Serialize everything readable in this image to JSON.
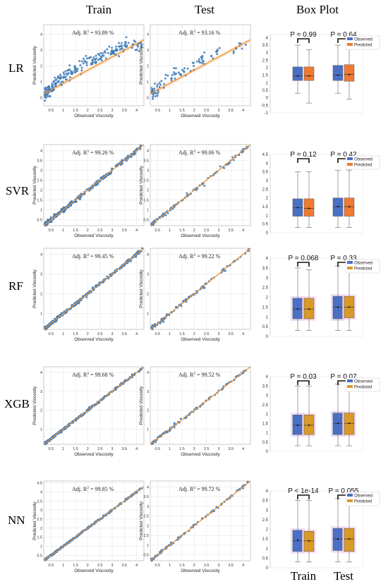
{
  "column_headers": [
    "Train",
    "Test",
    "Box Plot"
  ],
  "bottom_labels": [
    "Train",
    "Test"
  ],
  "row_labels": [
    "LR",
    "SVR",
    "RF",
    "XGB",
    "NN"
  ],
  "scatter_xlabel": "Observed Viscosity",
  "scatter_ylabel": "Predicted Viscosity",
  "r2_prefix": "Adj. R",
  "legend": [
    "Observed",
    "Predicted"
  ],
  "colors": {
    "point": "#3d7ab8",
    "fit_line": "#f0922f",
    "band": "#fcd9b8",
    "observed_box": "#4a70c4",
    "predicted_box_lr_svr": "#ef7a32",
    "predicted_box_tree_nn": "#d99a28",
    "observed_box_shade": "#d8c8f0",
    "predicted_box_shade": "#fcd0ec",
    "grid": "#e6e6e6"
  },
  "chart_data": [
    {
      "model": "LR",
      "type": "scatter",
      "train": {
        "r2": "93.89 %",
        "xticks": [
          0.5,
          1,
          1.5,
          2,
          2.5,
          3,
          3.5,
          4
        ],
        "yticks": [
          0,
          1,
          2,
          3,
          4
        ],
        "xlim": [
          0.2,
          4.3
        ],
        "ylim": [
          -0.5,
          4.6
        ],
        "spread": 0.2
      },
      "test": {
        "r2": "93.16 %",
        "xticks": [
          0.5,
          1,
          1.5,
          2,
          2.5,
          3,
          3.5,
          4
        ],
        "yticks": [
          0,
          1,
          2,
          3,
          4
        ],
        "xlim": [
          0.2,
          4.3
        ],
        "ylim": [
          -0.5,
          4.6
        ],
        "spread": 0.2
      },
      "box": {
        "type": "box",
        "pvalues": [
          "P = 0.99",
          "P = 0.64"
        ],
        "yticks": [
          -1,
          -0.5,
          0,
          0.5,
          1,
          1.5,
          2,
          2.5,
          3,
          3.5,
          4
        ],
        "ylim": [
          -1,
          4.2
        ],
        "train": {
          "observed": {
            "min": 0.3,
            "q1": 1.15,
            "median": 1.45,
            "q3": 2.05,
            "max": 3.5,
            "mean": 1.45
          },
          "predicted": {
            "min": -0.35,
            "q1": 1.15,
            "median": 1.45,
            "q3": 2.05,
            "max": 3.2,
            "mean": 1.45
          }
        },
        "test": {
          "observed": {
            "min": 0.3,
            "q1": 1.15,
            "median": 1.5,
            "q3": 2.15,
            "max": 3.5,
            "mean": 1.5
          },
          "predicted": {
            "min": -0.1,
            "q1": 1.1,
            "median": 1.55,
            "q3": 2.2,
            "max": 3.4,
            "mean": 1.55
          }
        }
      }
    },
    {
      "model": "SVR",
      "type": "scatter",
      "train": {
        "r2": "99.26 %",
        "xticks": [
          0.5,
          1,
          1.5,
          2,
          2.5,
          3,
          3.5,
          4
        ],
        "yticks": [
          0.5,
          1,
          1.5,
          2,
          2.5,
          3,
          3.5,
          4
        ],
        "xlim": [
          0.2,
          4.3
        ],
        "ylim": [
          0.2,
          4.3
        ],
        "spread": 0.05
      },
      "test": {
        "r2": "99.06 %",
        "xticks": [
          0.5,
          1,
          1.5,
          2,
          2.5,
          3,
          3.5,
          4
        ],
        "yticks": [
          0.5,
          1,
          1.5,
          2,
          2.5,
          3,
          3.5,
          4
        ],
        "xlim": [
          0.2,
          4.3
        ],
        "ylim": [
          0.2,
          4.3
        ],
        "spread": 0.05
      },
      "box": {
        "type": "box",
        "pvalues": [
          "P = 0.12",
          "P = 0.42"
        ],
        "yticks": [
          0,
          0.5,
          1,
          1.5,
          2,
          2.5,
          3,
          3.5,
          4,
          4.5
        ],
        "ylim": [
          0,
          4.5
        ],
        "train": {
          "observed": {
            "min": 0.3,
            "q1": 0.95,
            "median": 1.45,
            "q3": 1.95,
            "max": 3.5,
            "mean": 1.45
          },
          "predicted": {
            "min": 0.3,
            "q1": 0.95,
            "median": 1.4,
            "q3": 1.95,
            "max": 3.5,
            "mean": 1.4
          }
        },
        "test": {
          "observed": {
            "min": 0.3,
            "q1": 0.95,
            "median": 1.5,
            "q3": 2.0,
            "max": 3.6,
            "mean": 1.5
          },
          "predicted": {
            "min": 0.3,
            "q1": 0.95,
            "median": 1.5,
            "q3": 2.0,
            "max": 3.6,
            "mean": 1.5
          }
        }
      }
    },
    {
      "model": "RF",
      "type": "scatter",
      "train": {
        "r2": "99.45 %",
        "xticks": [
          0.5,
          1,
          1.5,
          2,
          2.5,
          3,
          3.5,
          4
        ],
        "yticks": [
          1,
          2,
          3,
          4
        ],
        "xlim": [
          0.2,
          4.3
        ],
        "ylim": [
          0.2,
          4.3
        ],
        "spread": 0.04
      },
      "test": {
        "r2": "99.22 %",
        "xticks": [
          0.5,
          1,
          1.5,
          2,
          2.5,
          3,
          3.5,
          4
        ],
        "yticks": [
          1,
          2,
          3,
          4
        ],
        "xlim": [
          0.2,
          4.3
        ],
        "ylim": [
          0.2,
          4.3
        ],
        "spread": 0.05
      },
      "box": {
        "type": "box",
        "pvalues": [
          "P = 0.068",
          "P = 0.33"
        ],
        "yticks": [
          0,
          0.5,
          1,
          1.5,
          2,
          2.5,
          3,
          3.5,
          4
        ],
        "ylim": [
          0,
          4
        ],
        "train": {
          "observed": {
            "min": 0.3,
            "q1": 0.9,
            "median": 1.4,
            "q3": 1.95,
            "max": 3.5,
            "mean": 1.4
          },
          "predicted": {
            "min": 0.3,
            "q1": 0.9,
            "median": 1.4,
            "q3": 1.95,
            "max": 3.4,
            "mean": 1.4
          }
        },
        "test": {
          "observed": {
            "min": 0.3,
            "q1": 0.9,
            "median": 1.5,
            "q3": 2.05,
            "max": 3.6,
            "mean": 1.5
          },
          "predicted": {
            "min": 0.3,
            "q1": 0.95,
            "median": 1.5,
            "q3": 2.05,
            "max": 3.6,
            "mean": 1.5
          }
        }
      }
    },
    {
      "model": "XGB",
      "type": "scatter",
      "train": {
        "r2": "99.68 %",
        "xticks": [
          0.5,
          1,
          1.5,
          2,
          2.5,
          3,
          3.5,
          4
        ],
        "yticks": [
          1,
          2,
          3,
          4
        ],
        "xlim": [
          0.2,
          4.3
        ],
        "ylim": [
          0.2,
          4.3
        ],
        "spread": 0.03
      },
      "test": {
        "r2": "99.52 %",
        "xticks": [
          0.5,
          1,
          1.5,
          2,
          2.5,
          3,
          3.5,
          4
        ],
        "yticks": [
          1,
          2,
          3,
          4
        ],
        "xlim": [
          0.2,
          4.3
        ],
        "ylim": [
          0.2,
          4.3
        ],
        "spread": 0.04
      },
      "box": {
        "type": "box",
        "pvalues": [
          "P = 0.03",
          "P = 0.07"
        ],
        "yticks": [
          0,
          0.5,
          1,
          1.5,
          2,
          2.5,
          3,
          3.5,
          4
        ],
        "ylim": [
          0,
          4
        ],
        "train": {
          "observed": {
            "min": 0.3,
            "q1": 0.9,
            "median": 1.4,
            "q3": 1.95,
            "max": 3.5,
            "mean": 1.4
          },
          "predicted": {
            "min": 0.3,
            "q1": 0.9,
            "median": 1.4,
            "q3": 1.95,
            "max": 3.5,
            "mean": 1.4
          }
        },
        "test": {
          "observed": {
            "min": 0.3,
            "q1": 0.9,
            "median": 1.5,
            "q3": 2.05,
            "max": 3.6,
            "mean": 1.5
          },
          "predicted": {
            "min": 0.3,
            "q1": 0.9,
            "median": 1.5,
            "q3": 2.05,
            "max": 3.6,
            "mean": 1.5
          }
        }
      }
    },
    {
      "model": "NN",
      "type": "scatter",
      "train": {
        "r2": "99.85 %",
        "xticks": [
          0.5,
          1,
          1.5,
          2,
          2.5,
          3,
          3.5,
          4
        ],
        "yticks": [
          0.5,
          1,
          1.5,
          2,
          2.5,
          3,
          3.5,
          4,
          4.5
        ],
        "xlim": [
          0.2,
          4.3
        ],
        "ylim": [
          0.2,
          4.6
        ],
        "spread": 0.02
      },
      "test": {
        "r2": "99.72 %",
        "xticks": [
          0.5,
          1,
          1.5,
          2,
          2.5,
          3,
          3.5,
          4
        ],
        "yticks": [
          0.5,
          1,
          1.5,
          2,
          2.5,
          3,
          3.5,
          4
        ],
        "xlim": [
          0.2,
          4.3
        ],
        "ylim": [
          0.2,
          4.3
        ],
        "spread": 0.03
      },
      "box": {
        "type": "box",
        "pvalues": [
          "P < 1e-14",
          "P = 0.055"
        ],
        "yticks": [
          0,
          0.5,
          1,
          1.5,
          2,
          2.5,
          3,
          3.5,
          4
        ],
        "ylim": [
          0,
          4
        ],
        "train": {
          "observed": {
            "min": 0.3,
            "q1": 0.85,
            "median": 1.4,
            "q3": 1.95,
            "max": 3.5,
            "mean": 1.45
          },
          "predicted": {
            "min": 0.3,
            "q1": 0.85,
            "median": 1.4,
            "q3": 1.9,
            "max": 3.5,
            "mean": 1.4
          }
        },
        "test": {
          "observed": {
            "min": 0.3,
            "q1": 0.9,
            "median": 1.5,
            "q3": 2.05,
            "max": 3.6,
            "mean": 1.5
          },
          "predicted": {
            "min": 0.3,
            "q1": 0.85,
            "median": 1.5,
            "q3": 2.05,
            "max": 3.6,
            "mean": 1.5
          }
        }
      }
    }
  ]
}
